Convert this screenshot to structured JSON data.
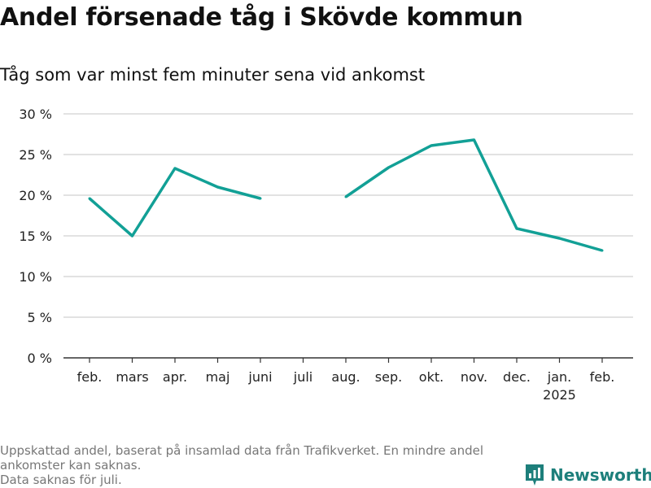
{
  "title": "Andel försenade tåg i Skövde kommun",
  "subtitle": "Tåg som var minst fem minuter sena vid ankomst",
  "footer": {
    "line1": "Uppskattad andel, baserat på insamlad data från Trafikverket. En mindre andel ankomster kan saknas.",
    "line2": "Data saknas för juli."
  },
  "brand": {
    "name": "Newsworthy",
    "icon": "bar-chart-logo-icon",
    "color": "#1d7f7b"
  },
  "colors": {
    "line": "#12a096",
    "grid": "#d9d9d9",
    "axis": "#333333"
  },
  "chart_data": {
    "type": "line",
    "categories": [
      "feb.",
      "mars",
      "apr.",
      "maj",
      "juni",
      "juli",
      "aug.",
      "sep.",
      "okt.",
      "nov.",
      "dec.",
      "jan.",
      "feb."
    ],
    "category_sublabels": [
      "",
      "",
      "",
      "",
      "",
      "",
      "",
      "",
      "",
      "",
      "",
      "2025",
      ""
    ],
    "series": [
      {
        "values": [
          19.6,
          15.0,
          23.3,
          21.0,
          19.6,
          null,
          19.8,
          23.4,
          26.1,
          26.8,
          15.9,
          14.7,
          13.2
        ]
      }
    ],
    "ylim": [
      0,
      30
    ],
    "yticks": [
      0,
      5,
      10,
      15,
      20,
      25,
      30
    ],
    "ytick_labels": [
      "0 %",
      "5 %",
      "10 %",
      "15 %",
      "20 %",
      "25 %",
      "30 %"
    ],
    "grid": true
  }
}
